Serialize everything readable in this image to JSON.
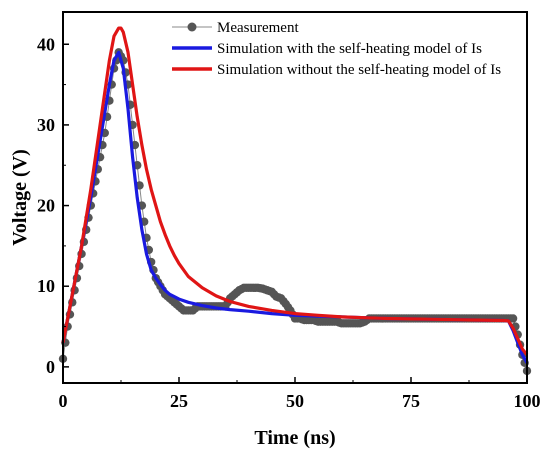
{
  "chart_data": {
    "type": "line",
    "title": "",
    "xlabel": "Time (ns)",
    "ylabel": "Voltage (V)",
    "xlim": [
      0,
      100
    ],
    "ylim": [
      -2,
      44
    ],
    "xticks": [
      0,
      25,
      50,
      75,
      100
    ],
    "yticks": [
      0,
      10,
      20,
      30,
      40
    ],
    "grid": false,
    "legend": "top-right",
    "series": [
      {
        "name": "Measurement",
        "color": "#555555",
        "style": "scatter-line",
        "x": [
          0,
          1,
          2,
          3,
          4,
          5,
          6,
          7,
          8,
          9,
          10,
          11,
          12,
          13,
          14,
          15,
          16,
          17,
          18,
          19,
          20,
          21,
          22,
          23,
          24,
          25,
          26,
          27,
          28,
          29,
          30,
          31,
          32,
          33,
          34,
          35,
          36,
          37,
          38,
          39,
          40,
          41,
          42,
          43,
          44,
          45,
          46,
          47,
          48,
          49,
          50,
          51,
          52,
          53,
          54,
          55,
          56,
          57,
          58,
          59,
          60,
          61,
          62,
          63,
          64,
          65,
          66,
          67,
          68,
          69,
          70,
          71,
          72,
          73,
          74,
          75,
          76,
          77,
          78,
          79,
          80,
          81,
          82,
          83,
          84,
          85,
          86,
          87,
          88,
          89,
          90,
          91,
          92,
          93,
          94,
          95,
          96,
          97,
          98,
          99,
          100
        ],
        "y": [
          1,
          5,
          8,
          11,
          14,
          17,
          20,
          23,
          26,
          29,
          33,
          37,
          39,
          38,
          35,
          30,
          25,
          20,
          16,
          13,
          11,
          10,
          9,
          8.5,
          8,
          7.5,
          7,
          7,
          7,
          7.5,
          7.5,
          7.5,
          7.5,
          7.5,
          7.5,
          7.5,
          8.5,
          9,
          9.5,
          9.8,
          9.8,
          9.8,
          9.8,
          9.7,
          9.5,
          9.3,
          8.7,
          8.5,
          7.8,
          7,
          6,
          6,
          5.8,
          5.8,
          5.8,
          5.6,
          5.6,
          5.6,
          5.6,
          5.6,
          5.4,
          5.4,
          5.4,
          5.4,
          5.4,
          5.6,
          6,
          6,
          6,
          6,
          6,
          6,
          6,
          6,
          6,
          6,
          6,
          6,
          6,
          6,
          6,
          6,
          6,
          6,
          6,
          6,
          6,
          6,
          6,
          6,
          6,
          6,
          6,
          6,
          6,
          6,
          6,
          6,
          4,
          1.5,
          -0.5
        ]
      },
      {
        "name": "Simulation with the self-heating model of Is",
        "color": "#1a1ae0",
        "style": "line",
        "x": [
          0,
          2,
          4,
          6,
          8,
          10,
          11,
          12,
          13,
          14,
          15,
          16,
          17,
          18,
          19,
          20,
          21,
          22,
          23,
          24,
          25,
          27,
          30,
          33,
          36,
          40,
          45,
          50,
          55,
          60,
          65,
          70,
          75,
          80,
          85,
          90,
          95,
          96,
          97,
          98,
          99,
          100
        ],
        "y": [
          3,
          9,
          15,
          21,
          28,
          35,
          38,
          39,
          37,
          32,
          26,
          21,
          17,
          14,
          12,
          11,
          10.2,
          9.5,
          9,
          8.7,
          8.4,
          8,
          7.6,
          7.3,
          7.1,
          6.9,
          6.6,
          6.4,
          6.3,
          6.2,
          6.1,
          6,
          5.95,
          5.9,
          5.85,
          5.8,
          5.75,
          5.7,
          4.5,
          3,
          1.5,
          0.5
        ]
      },
      {
        "name": "Simulation without the self-heating model of Is",
        "color": "#e01515",
        "style": "line",
        "x": [
          0,
          2,
          4,
          6,
          8,
          10,
          11,
          12,
          12.5,
          13,
          14,
          15,
          16,
          17,
          18,
          19,
          20,
          21,
          22,
          23,
          24,
          25,
          27,
          30,
          33,
          36,
          40,
          45,
          50,
          55,
          60,
          65,
          70,
          75,
          80,
          85,
          90,
          95,
          96,
          97,
          98,
          99,
          100
        ],
        "y": [
          3,
          9,
          15,
          22,
          30,
          38,
          41,
          42,
          42,
          41.5,
          39,
          35,
          31,
          27.5,
          24.5,
          22,
          20,
          18,
          16.4,
          15,
          13.8,
          12.8,
          11.2,
          9.8,
          8.8,
          8.1,
          7.5,
          7,
          6.6,
          6.4,
          6.2,
          6.1,
          6,
          5.95,
          5.9,
          5.85,
          5.8,
          5.75,
          5.7,
          4.8,
          3.5,
          2.2,
          1.5
        ]
      }
    ]
  }
}
